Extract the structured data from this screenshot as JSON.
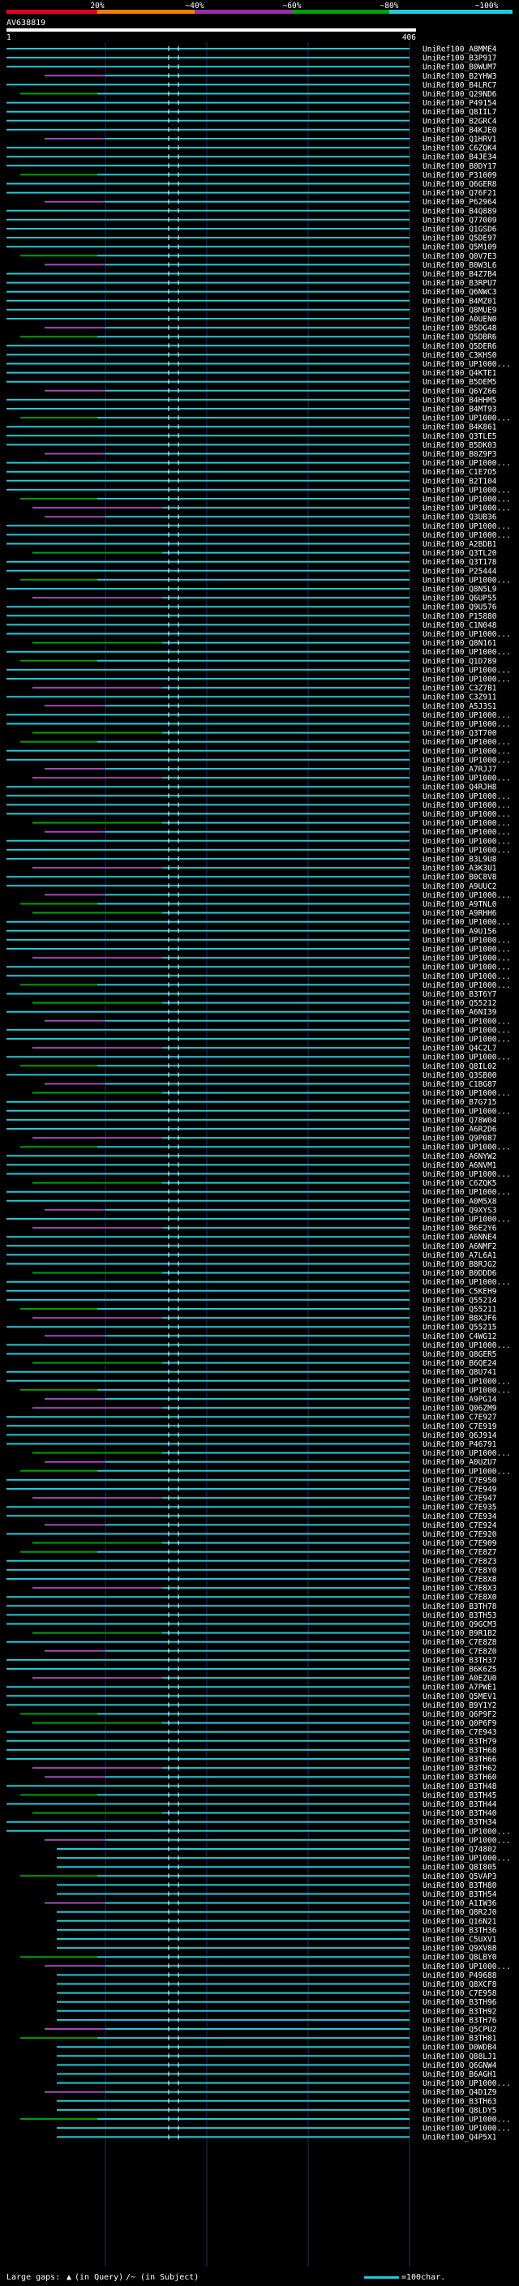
{
  "chart_data": {
    "type": "alignment-overview",
    "title": "AV638819",
    "query_start": "1",
    "query_end": "406",
    "legend_top": {
      "ticks": [
        "20%",
        "~40%",
        "~60%",
        "~80%",
        "~100%"
      ],
      "colors": [
        "#e3001b",
        "#f07d00",
        "#9a2fa5",
        "#00a000",
        "#24c8d8"
      ]
    },
    "legend_bottom": {
      "large_gaps": "Large gaps:",
      "in_query": "(in Query)",
      "in_subject": "/~ (in Subject)",
      "scale": "=100char."
    },
    "hit_labels": [
      "UniRef100_A8MME4",
      "UniRef100_B3P917",
      "UniRef100_B0WUM7",
      "UniRef100_B2YHW3",
      "UniRef100_B4LRC7",
      "UniRef100_Q29ND6",
      "UniRef100_P49154",
      "UniRef100_Q8IIL7",
      "UniRef100_B2GRC4",
      "UniRef100_B4KJE0",
      "UniRef100_Q1HRV1",
      "UniRef100_C6ZQK4",
      "UniRef100_B4JE34",
      "UniRef100_B0DY17",
      "UniRef100_P31009",
      "UniRef100_Q6GER8",
      "UniRef100_Q76F21",
      "UniRef100_P62964",
      "UniRef100_B4Q889",
      "UniRef100_Q77009",
      "UniRef100_Q1GSD6",
      "UniRef100_Q5DE97",
      "UniRef100_Q5M109",
      "UniRef100_Q0V7E3",
      "UniRef100_B0W3L6",
      "UniRef100_B4Z7B4",
      "UniRef100_B3RPU7",
      "UniRef100_Q6NWC3",
      "UniRef100_B4MZ01",
      "UniRef100_Q8MUE9",
      "UniRef100_A0UEN0",
      "UniRef100_B5DG48",
      "UniRef100_Q5DBR6",
      "UniRef100_Q5DER6",
      "UniRef100_C3KHS0",
      "UniRef100_UP1000...",
      "UniRef100_Q4KTE1",
      "UniRef100_B5DEM5",
      "UniRef100_Q6YZ66",
      "UniRef100_B4HHM5",
      "UniRef100_B4MT93",
      "UniRef100_UP1000...",
      "UniRef100_B4K861",
      "UniRef100_Q3TLE5",
      "UniRef100_B5DK03",
      "UniRef100_B0Z9P3",
      "UniRef100_UP1000...",
      "UniRef100_C1E7O5",
      "UniRef100_B2T104",
      "UniRef100_UP1000...",
      "UniRef100_UP1000...",
      "UniRef100_UP1000...",
      "UniRef100_Q3UB36",
      "UniRef100_UP1000...",
      "UniRef100_UP1000...",
      "UniRef100_A2BDB1",
      "UniRef100_Q3TL20",
      "UniRef100_Q3T178",
      "UniRef100_P25444",
      "UniRef100_UP1000...",
      "UniRef100_Q8N5L9",
      "UniRef100_Q6UP55",
      "UniRef100_Q9U576",
      "UniRef100_P15880",
      "UniRef100_C1N048",
      "UniRef100_UP1000...",
      "UniRef100_Q8N161",
      "UniRef100_UP1000...",
      "UniRef100_Q1D789",
      "UniRef100_UP1000...",
      "UniRef100_UP1000...",
      "UniRef100_C3Z7B1",
      "UniRef100_C3Z911",
      "UniRef100_A5J3S1",
      "UniRef100_UP1000...",
      "UniRef100_UP1000...",
      "UniRef100_Q3T700",
      "UniRef100_UP1000...",
      "UniRef100_UP1000...",
      "UniRef100_UP1000...",
      "UniRef100_A7RJJ7",
      "UniRef100_UP1000...",
      "UniRef100_Q4RJH8",
      "UniRef100_UP1000...",
      "UniRef100_UP1000...",
      "UniRef100_UP1000...",
      "UniRef100_UP1000...",
      "UniRef100_UP1000...",
      "UniRef100_UP1000...",
      "UniRef100_UP1000...",
      "UniRef100_B3L9U8",
      "UniRef100_A3K3U1",
      "UniRef100_B0C8V8",
      "UniRef100_A9UUC2",
      "UniRef100_UP1000...",
      "UniRef100_A9TNL0",
      "UniRef100_A9RHH6",
      "UniRef100_UP1000...",
      "UniRef100_A9U156",
      "UniRef100_UP1000...",
      "UniRef100_UP1000...",
      "UniRef100_UP1000...",
      "UniRef100_UP1000...",
      "UniRef100_UP1000...",
      "UniRef100_UP1000...",
      "UniRef100_B3T6Y7",
      "UniRef100_Q55212",
      "UniRef100_A6NI39",
      "UniRef100_UP1000...",
      "UniRef100_UP1000...",
      "UniRef100_UP1000...",
      "UniRef100_Q4C2L7",
      "UniRef100_UP1000...",
      "UniRef100_Q8IL02",
      "UniRef100_Q3SB00",
      "UniRef100_C1BG87",
      "UniRef100_UP1000...",
      "UniRef100_B7G715",
      "UniRef100_UP1000...",
      "UniRef100_Q78W04",
      "UniRef100_A6R2D6",
      "UniRef100_Q9P087",
      "UniRef100_UP1000...",
      "UniRef100_A6NYW2",
      "UniRef100_A6NVM1",
      "UniRef100_UP1000...",
      "UniRef100_C6ZQK5",
      "UniRef100_UP1000...",
      "UniRef100_A0M5X8",
      "UniRef100_Q9XYS3",
      "UniRef100_UP1000...",
      "UniRef100_B6E2Y6",
      "UniRef100_A6NNE4",
      "UniRef100_A6NMF2",
      "UniRef100_A7L6A1",
      "UniRef100_B8RJG2",
      "UniRef100_B0DDD6",
      "UniRef100_UP1000...",
      "UniRef100_C5KEH9",
      "UniRef100_Q55214",
      "UniRef100_Q55211",
      "UniRef100_B8XJF6",
      "UniRef100_Q55215",
      "UniRef100_C4WG12",
      "UniRef100_UP1000...",
      "UniRef100_Q8GER5",
      "UniRef100_B6QE24",
      "UniRef100_Q8U741",
      "UniRef100_UP1000...",
      "UniRef100_UP1000...",
      "UniRef100_A9PG14",
      "UniRef100_Q06ZM9",
      "UniRef100_C7E927",
      "UniRef100_C7E919",
      "UniRef100_Q6J914",
      "UniRef100_P46791",
      "UniRef100_UP1000...",
      "UniRef100_A0UZU7",
      "UniRef100_UP1000...",
      "UniRef100_C7E950",
      "UniRef100_C7E949",
      "UniRef100_C7E947",
      "UniRef100_C7E935",
      "UniRef100_C7E934",
      "UniRef100_C7E924",
      "UniRef100_C7E920",
      "UniRef100_C7E909",
      "UniRef100_C7E8Z7",
      "UniRef100_C7E8Z3",
      "UniRef100_C7E8Y0",
      "UniRef100_C7E8X8",
      "UniRef100_C7E8X3",
      "UniRef100_C7E8X0",
      "UniRef100_B3TH78",
      "UniRef100_B3TH53",
      "UniRef100_Q9GCM3",
      "UniRef100_B9R1B2",
      "UniRef100_C7E8Z8",
      "UniRef100_C7E8Z0",
      "UniRef100_B3TH37",
      "UniRef100_B6K6Z5",
      "UniRef100_A0EZU0",
      "UniRef100_A7PWE1",
      "UniRef100_Q5MEV1",
      "UniRef100_B9Y1Y2",
      "UniRef100_Q6P9F2",
      "UniRef100_Q0P6F9",
      "UniRef100_C7E943",
      "UniRef100_B3TH79",
      "UniRef100_B3TH68",
      "UniRef100_B3TH66",
      "UniRef100_B3TH62",
      "UniRef100_B3TH60",
      "UniRef100_B3TH48",
      "UniRef100_B3TH45",
      "UniRef100_B3TH44",
      "UniRef100_B3TH40",
      "UniRef100_B3TH34",
      "UniRef100_UP1000...",
      "UniRef100_UP1000...",
      "UniRef100_Q74802",
      "UniRef100_UP1000...",
      "UniRef100_Q8I805",
      "UniRef100_Q5VAP3",
      "UniRef100_B3TH80",
      "UniRef100_B3TH54",
      "UniRef100_A1IW36",
      "UniRef100_Q8R2J0",
      "UniRef100_Q16N21",
      "UniRef100_B3TH36",
      "UniRef100_C5UXV1",
      "UniRef100_Q9XV88",
      "UniRef100_Q8LBY0",
      "UniRef100_UP1000...",
      "UniRef100_P49688",
      "UniRef100_Q8XCF8",
      "UniRef100_C7E958",
      "UniRef100_B3TH96",
      "UniRef100_B3TH92",
      "UniRef100_B3TH76",
      "UniRef100_Q5CPU2",
      "UniRef100_B3TH81",
      "UniRef100_D0WDB4",
      "UniRef100_Q88LJ1",
      "UniRef100_Q6GNW4",
      "UniRef100_B6AGH1",
      "UniRef100_UP1000...",
      "UniRef100_Q4D1Z9",
      "UniRef100_B3TH63",
      "UniRef100_Q8LDY5",
      "UniRef100_UP1000...",
      "UniRef100_UP1000...",
      "UniRef100_Q4P5X1"
    ]
  }
}
